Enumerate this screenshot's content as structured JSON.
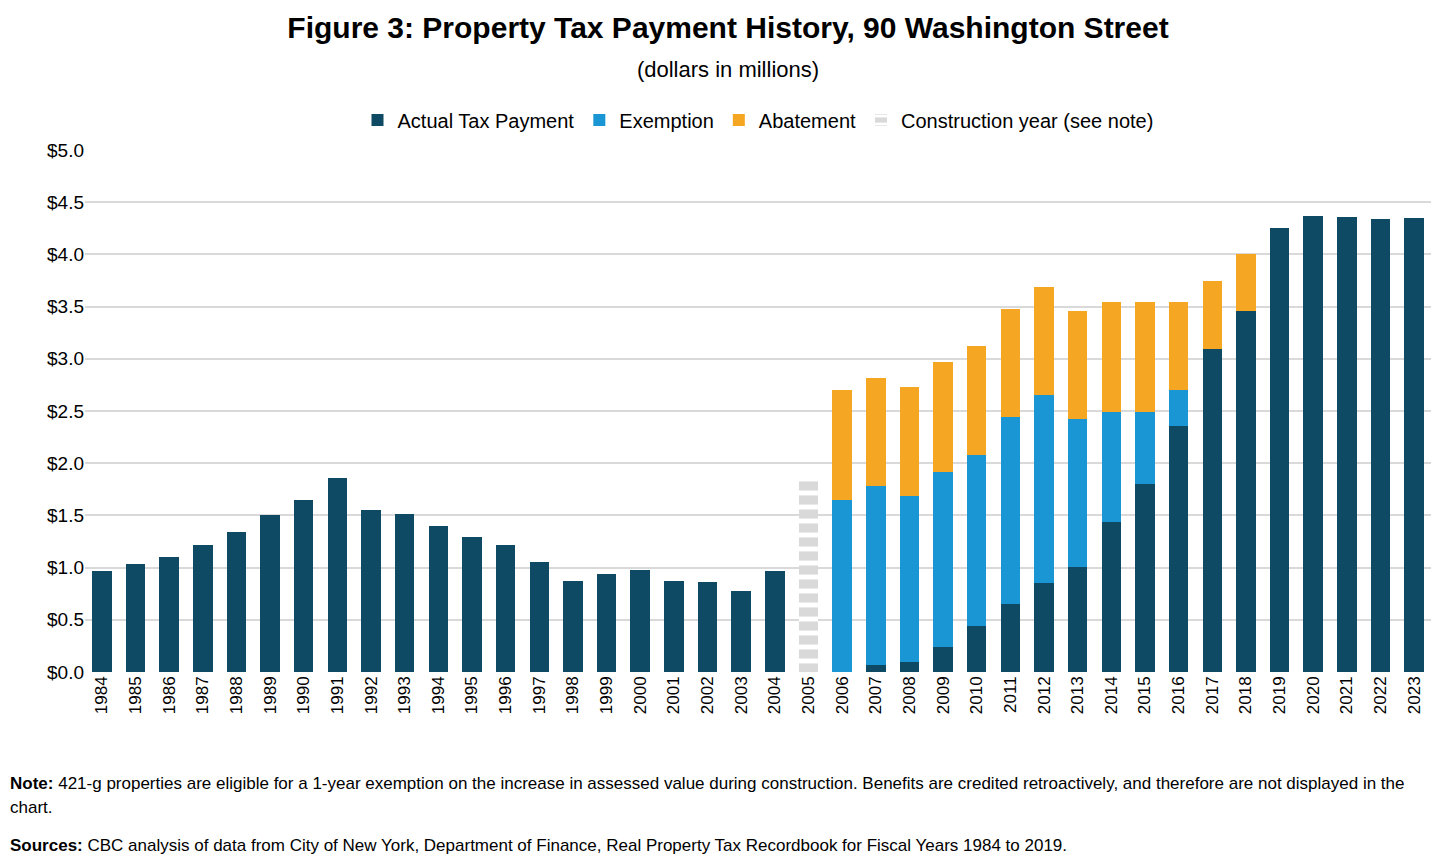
{
  "chart_data": {
    "type": "bar",
    "title": "Figure 3: Property Tax Payment History, 90 Washington Street",
    "subtitle": "(dollars in millions)",
    "stacked": true,
    "grid": true,
    "legend": "top",
    "categories": [
      "1984",
      "1985",
      "1986",
      "1987",
      "1988",
      "1989",
      "1990",
      "1991",
      "1992",
      "1993",
      "1994",
      "1995",
      "1996",
      "1997",
      "1998",
      "1999",
      "2000",
      "2001",
      "2002",
      "2003",
      "2004",
      "2005",
      "2006",
      "2007",
      "2008",
      "2009",
      "2010",
      "2011",
      "2012",
      "2013",
      "2014",
      "2015",
      "2016",
      "2017",
      "2018",
      "2019",
      "2020",
      "2021",
      "2022",
      "2023"
    ],
    "series": [
      {
        "name": "Actual Tax Payment",
        "color": "#0e4a63",
        "values": [
          0.97,
          1.03,
          1.1,
          1.22,
          1.34,
          1.5,
          1.65,
          1.86,
          1.55,
          1.51,
          1.4,
          1.29,
          1.22,
          1.05,
          0.87,
          0.94,
          0.98,
          0.87,
          0.86,
          0.78,
          0.97,
          null,
          0,
          0.07,
          0.1,
          0.24,
          0.44,
          0.65,
          0.85,
          1.01,
          1.44,
          1.8,
          2.36,
          3.09,
          3.46,
          4.25,
          4.37,
          4.36,
          4.34,
          4.35
        ]
      },
      {
        "name": "Exemption",
        "color": "#1b96d4",
        "values": [
          null,
          null,
          null,
          null,
          null,
          null,
          null,
          null,
          null,
          null,
          null,
          null,
          null,
          null,
          null,
          null,
          null,
          null,
          null,
          null,
          null,
          null,
          1.65,
          1.71,
          1.59,
          1.68,
          1.64,
          1.79,
          1.8,
          1.41,
          1.05,
          0.69,
          0.34,
          null,
          null,
          null,
          null,
          null,
          null,
          null
        ]
      },
      {
        "name": "Abatement",
        "color": "#f5a623",
        "values": [
          null,
          null,
          null,
          null,
          null,
          null,
          null,
          null,
          null,
          null,
          null,
          null,
          null,
          null,
          null,
          null,
          null,
          null,
          null,
          null,
          null,
          null,
          1.05,
          1.04,
          1.04,
          1.05,
          1.04,
          1.04,
          1.04,
          1.04,
          1.05,
          1.05,
          0.84,
          0.66,
          0.54,
          null,
          null,
          null,
          null,
          null
        ]
      },
      {
        "name": "Construction year (see note)",
        "color": "#d9d9d9",
        "line_style": "dashed",
        "values": [
          null,
          null,
          null,
          null,
          null,
          null,
          null,
          null,
          null,
          null,
          null,
          null,
          null,
          null,
          null,
          null,
          null,
          null,
          null,
          null,
          null,
          1.87,
          null,
          null,
          null,
          null,
          null,
          null,
          null,
          null,
          null,
          null,
          null,
          null,
          null,
          null,
          null,
          null,
          null,
          null
        ]
      }
    ],
    "ylim": [
      0,
      5
    ],
    "yticks": [
      {
        "value": 0,
        "label": "$0.0"
      },
      {
        "value": 0.5,
        "label": "$0.5"
      },
      {
        "value": 1,
        "label": "$1.0"
      },
      {
        "value": 1.5,
        "label": "$1.5"
      },
      {
        "value": 2,
        "label": "$2.0"
      },
      {
        "value": 2.5,
        "label": "$2.5"
      },
      {
        "value": 3,
        "label": "$3.0"
      },
      {
        "value": 3.5,
        "label": "$3.5"
      },
      {
        "value": 4,
        "label": "$4.0"
      },
      {
        "value": 4.5,
        "label": "$4.5"
      },
      {
        "value": 5,
        "label": "$5.0"
      }
    ],
    "annotations": [
      {
        "label": "Note:",
        "text": "421-g properties are eligible for a 1-year exemption on the increase in assessed value during construction. Benefits are credited retroactively, and therefore are not displayed in the chart."
      },
      {
        "label": "Sources:",
        "text": "CBC analysis of data from City of New York, Department of Finance, Real Property Tax Recordbook for Fiscal Years 1984 to 2019."
      }
    ]
  }
}
